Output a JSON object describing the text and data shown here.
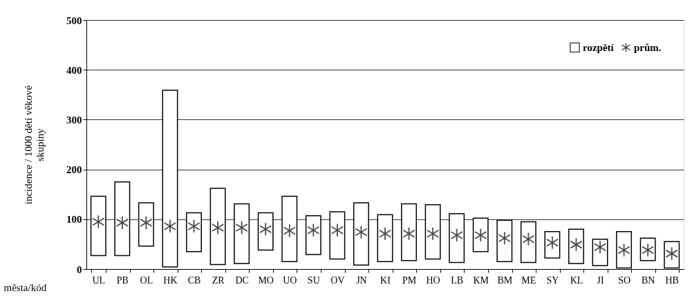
{
  "chart_data": {
    "type": "bar",
    "xlabel": "města/kód",
    "ylabel": "incidence / 1000 dětí věkové skupiny",
    "categories": [
      "UL",
      "PB",
      "OL",
      "HK",
      "CB",
      "ZR",
      "DC",
      "MO",
      "UO",
      "SU",
      "OV",
      "JN",
      "KI",
      "PM",
      "HO",
      "LB",
      "KM",
      "BM",
      "ME",
      "SY",
      "KL",
      "JI",
      "SO",
      "BN",
      "HB"
    ],
    "series": [
      {
        "name": "rozpětí",
        "color": "#ffffff",
        "base": [
          27,
          27,
          46,
          4,
          35,
          9,
          11,
          38,
          15,
          29,
          20,
          8,
          15,
          17,
          20,
          13,
          35,
          15,
          13,
          22,
          11,
          7,
          2,
          17,
          2
        ],
        "values": [
          119,
          148,
          87,
          355,
          78,
          153,
          120,
          75,
          131,
          78,
          95,
          125,
          94,
          114,
          109,
          98,
          67,
          83,
          82,
          53,
          69,
          53,
          73,
          45,
          53
        ]
      },
      {
        "name": "prům.",
        "type": "scatter",
        "color": "#000000",
        "marker": "cross",
        "values": [
          95,
          93,
          93,
          86,
          86,
          83,
          83,
          80,
          77,
          78,
          78,
          74,
          71,
          71,
          71,
          68,
          68,
          62,
          60,
          53,
          49,
          44,
          38,
          38,
          31
        ]
      }
    ],
    "ylim": [
      0,
      500
    ],
    "yticks": [
      0,
      100,
      200,
      300,
      400,
      500
    ],
    "grid": "y",
    "legend": "top right"
  }
}
